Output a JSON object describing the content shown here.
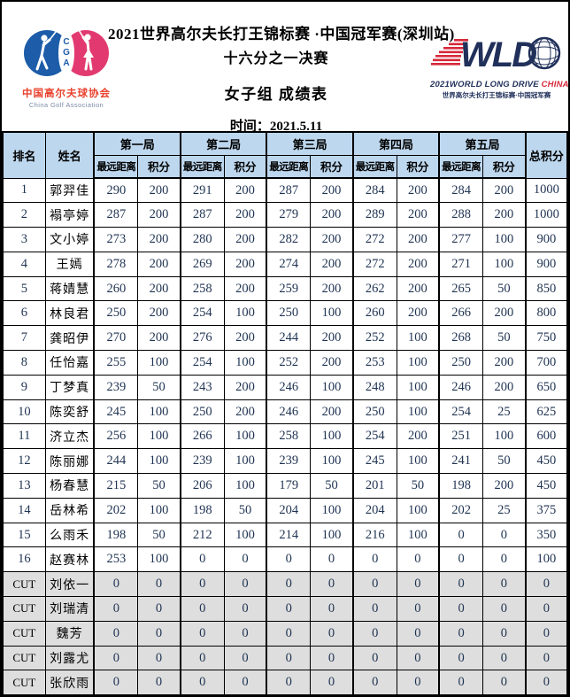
{
  "header": {
    "title": "2021世界高尔夫长打王锦标赛 ·中国冠军赛(深圳站)",
    "subtitle": "十六分之一决赛",
    "group_label": "女子组  成绩表",
    "date_label": "时间：2021.5.11"
  },
  "logos": {
    "cga": {
      "letters": [
        "C",
        "G",
        "A"
      ],
      "name_cn": "中国高尔夫球协会",
      "name_en": "China Golf Association",
      "blue": "#1c5ca8",
      "pink": "#e23a70"
    },
    "wld": {
      "acronym": "WLD",
      "tagline_main": "2021WORLD LONG DRIVE ",
      "tagline_china": "CHINA",
      "tagline_cn": "世界高尔夫长打王锦标赛·中国冠军赛",
      "navy": "#20305a",
      "red": "#d6293a"
    }
  },
  "table": {
    "header_bg": "#bdd7ee",
    "cut_row_bg": "#dedede",
    "col_rank": "排名",
    "col_name": "姓名",
    "col_total": "总积分",
    "sub_distance": "最远距离",
    "sub_points": "积分",
    "rounds": [
      "第一局",
      "第二局",
      "第三局",
      "第四局",
      "第五局"
    ],
    "rows": [
      {
        "rank": "1",
        "name": "郭羿佳",
        "scores": [
          "290",
          "200",
          "291",
          "200",
          "287",
          "200",
          "284",
          "200",
          "284",
          "200"
        ],
        "total": "1000",
        "cut": false
      },
      {
        "rank": "2",
        "name": "褟亭婷",
        "scores": [
          "287",
          "200",
          "287",
          "200",
          "279",
          "200",
          "289",
          "200",
          "288",
          "200"
        ],
        "total": "1000",
        "cut": false
      },
      {
        "rank": "3",
        "name": "文小婷",
        "scores": [
          "273",
          "200",
          "280",
          "200",
          "282",
          "200",
          "272",
          "200",
          "277",
          "100"
        ],
        "total": "900",
        "cut": false
      },
      {
        "rank": "4",
        "name": "王嫣",
        "scores": [
          "278",
          "200",
          "269",
          "200",
          "274",
          "200",
          "272",
          "200",
          "271",
          "100"
        ],
        "total": "900",
        "cut": false
      },
      {
        "rank": "5",
        "name": "蒋婧慧",
        "scores": [
          "260",
          "200",
          "258",
          "200",
          "259",
          "200",
          "262",
          "200",
          "265",
          "50"
        ],
        "total": "850",
        "cut": false
      },
      {
        "rank": "6",
        "name": "林良君",
        "scores": [
          "250",
          "200",
          "254",
          "100",
          "250",
          "100",
          "260",
          "200",
          "266",
          "200"
        ],
        "total": "800",
        "cut": false
      },
      {
        "rank": "7",
        "name": "龚昭伊",
        "scores": [
          "270",
          "200",
          "276",
          "200",
          "244",
          "200",
          "252",
          "100",
          "268",
          "50"
        ],
        "total": "750",
        "cut": false
      },
      {
        "rank": "8",
        "name": "任怡嘉",
        "scores": [
          "255",
          "100",
          "254",
          "100",
          "252",
          "200",
          "253",
          "100",
          "250",
          "200"
        ],
        "total": "700",
        "cut": false
      },
      {
        "rank": "9",
        "name": "丁梦真",
        "scores": [
          "239",
          "50",
          "243",
          "200",
          "246",
          "100",
          "248",
          "100",
          "246",
          "200"
        ],
        "total": "650",
        "cut": false
      },
      {
        "rank": "10",
        "name": "陈奕舒",
        "scores": [
          "245",
          "100",
          "250",
          "200",
          "246",
          "200",
          "250",
          "100",
          "254",
          "25"
        ],
        "total": "625",
        "cut": false
      },
      {
        "rank": "11",
        "name": "济立杰",
        "scores": [
          "256",
          "100",
          "266",
          "100",
          "258",
          "100",
          "254",
          "200",
          "251",
          "100"
        ],
        "total": "600",
        "cut": false
      },
      {
        "rank": "12",
        "name": "陈丽娜",
        "scores": [
          "244",
          "100",
          "239",
          "100",
          "239",
          "100",
          "245",
          "100",
          "241",
          "50"
        ],
        "total": "450",
        "cut": false
      },
      {
        "rank": "13",
        "name": "杨春慧",
        "scores": [
          "215",
          "50",
          "206",
          "100",
          "179",
          "50",
          "201",
          "50",
          "198",
          "200"
        ],
        "total": "450",
        "cut": false
      },
      {
        "rank": "14",
        "name": "岳林希",
        "scores": [
          "202",
          "100",
          "198",
          "50",
          "204",
          "100",
          "204",
          "100",
          "202",
          "25"
        ],
        "total": "375",
        "cut": false
      },
      {
        "rank": "15",
        "name": "么雨禾",
        "scores": [
          "198",
          "50",
          "212",
          "100",
          "214",
          "100",
          "216",
          "100",
          "0",
          "0"
        ],
        "total": "350",
        "cut": false
      },
      {
        "rank": "16",
        "name": "赵赛林",
        "scores": [
          "253",
          "100",
          "0",
          "0",
          "0",
          "0",
          "0",
          "0",
          "0",
          "0"
        ],
        "total": "100",
        "cut": false
      },
      {
        "rank": "CUT",
        "name": "刘依一",
        "scores": [
          "0",
          "0",
          "0",
          "0",
          "0",
          "0",
          "0",
          "0",
          "0",
          "0"
        ],
        "total": "0",
        "cut": true
      },
      {
        "rank": "CUT",
        "name": "刘瑞清",
        "scores": [
          "0",
          "0",
          "0",
          "0",
          "0",
          "0",
          "0",
          "0",
          "0",
          "0"
        ],
        "total": "0",
        "cut": true
      },
      {
        "rank": "CUT",
        "name": "魏芳",
        "scores": [
          "0",
          "0",
          "0",
          "0",
          "0",
          "0",
          "0",
          "0",
          "0",
          "0"
        ],
        "total": "0",
        "cut": true
      },
      {
        "rank": "CUT",
        "name": "刘露尤",
        "scores": [
          "0",
          "0",
          "0",
          "0",
          "0",
          "0",
          "0",
          "0",
          "0",
          "0"
        ],
        "total": "0",
        "cut": true
      },
      {
        "rank": "CUT",
        "name": "张欣雨",
        "scores": [
          "0",
          "0",
          "0",
          "0",
          "0",
          "0",
          "0",
          "0",
          "0",
          "0"
        ],
        "total": "0",
        "cut": true
      }
    ]
  }
}
